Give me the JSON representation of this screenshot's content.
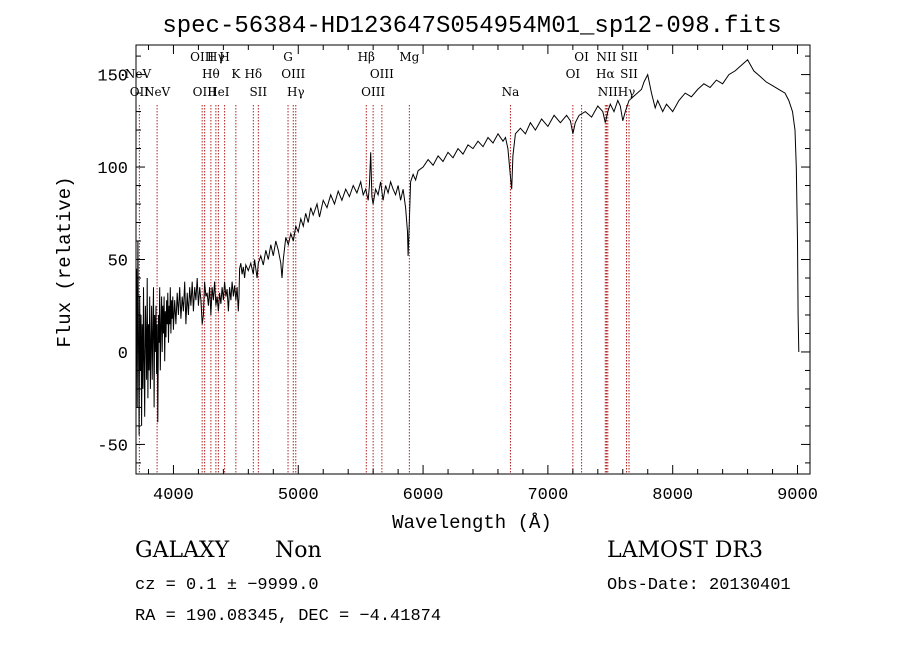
{
  "chart_data": {
    "type": "line",
    "title": "spec-56384-HD123647S054954M01_sp12-098.fits",
    "xlabel": "Wavelength (Å)",
    "ylabel": "Flux (relative)",
    "xlim": [
      3700,
      9100
    ],
    "ylim": [
      -66,
      166
    ],
    "xticks": [
      4000,
      5000,
      6000,
      7000,
      8000,
      9000
    ],
    "yticks": [
      -50,
      0,
      50,
      100,
      150
    ],
    "grid": false,
    "series": [
      {
        "points": [
          [
            3700,
            2
          ],
          [
            3705,
            45
          ],
          [
            3710,
            -30
          ],
          [
            3715,
            60
          ],
          [
            3720,
            5
          ],
          [
            3725,
            -45
          ],
          [
            3730,
            30
          ],
          [
            3735,
            -10
          ],
          [
            3740,
            20
          ],
          [
            3745,
            -40
          ],
          [
            3750,
            15
          ],
          [
            3755,
            -20
          ],
          [
            3760,
            35
          ],
          [
            3765,
            -5
          ],
          [
            3770,
            -35
          ],
          [
            3775,
            25
          ],
          [
            3780,
            10
          ],
          [
            3785,
            -15
          ],
          [
            3790,
            40
          ],
          [
            3795,
            -25
          ],
          [
            3800,
            15
          ],
          [
            3805,
            -10
          ],
          [
            3810,
            30
          ],
          [
            3815,
            -20
          ],
          [
            3820,
            5
          ],
          [
            3825,
            25
          ],
          [
            3830,
            -15
          ],
          [
            3835,
            10
          ],
          [
            3840,
            35
          ],
          [
            3845,
            -30
          ],
          [
            3850,
            20
          ],
          [
            3855,
            0
          ],
          [
            3860,
            25
          ],
          [
            3865,
            -12
          ],
          [
            3870,
            15
          ],
          [
            3875,
            -38
          ],
          [
            3880,
            20
          ],
          [
            3885,
            5
          ],
          [
            3890,
            35
          ],
          [
            3895,
            -10
          ],
          [
            3900,
            15
          ],
          [
            3905,
            30
          ],
          [
            3910,
            0
          ],
          [
            3915,
            25
          ],
          [
            3920,
            10
          ],
          [
            3925,
            30
          ],
          [
            3930,
            -5
          ],
          [
            3935,
            22
          ],
          [
            3940,
            8
          ],
          [
            3945,
            28
          ],
          [
            3950,
            15
          ],
          [
            3955,
            32
          ],
          [
            3960,
            5
          ],
          [
            3965,
            25
          ],
          [
            3970,
            15
          ],
          [
            3975,
            35
          ],
          [
            3980,
            10
          ],
          [
            3985,
            28
          ],
          [
            3990,
            18
          ],
          [
            3995,
            30
          ],
          [
            4000,
            12
          ],
          [
            4010,
            28
          ],
          [
            4020,
            15
          ],
          [
            4030,
            32
          ],
          [
            4040,
            20
          ],
          [
            4050,
            35
          ],
          [
            4060,
            18
          ],
          [
            4070,
            30
          ],
          [
            4080,
            22
          ],
          [
            4090,
            38
          ],
          [
            4100,
            15
          ],
          [
            4110,
            32
          ],
          [
            4120,
            20
          ],
          [
            4130,
            35
          ],
          [
            4140,
            25
          ],
          [
            4150,
            38
          ],
          [
            4160,
            22
          ],
          [
            4170,
            35
          ],
          [
            4180,
            28
          ],
          [
            4190,
            40
          ],
          [
            4200,
            25
          ],
          [
            4210,
            35
          ],
          [
            4220,
            28
          ],
          [
            4230,
            15
          ],
          [
            4240,
            20
          ],
          [
            4250,
            38
          ],
          [
            4260,
            30
          ],
          [
            4270,
            32
          ],
          [
            4280,
            25
          ],
          [
            4290,
            35
          ],
          [
            4300,
            20
          ],
          [
            4310,
            35
          ],
          [
            4320,
            28
          ],
          [
            4330,
            38
          ],
          [
            4340,
            25
          ],
          [
            4350,
            30
          ],
          [
            4360,
            22
          ],
          [
            4370,
            32
          ],
          [
            4380,
            26
          ],
          [
            4390,
            35
          ],
          [
            4400,
            28
          ],
          [
            4410,
            38
          ],
          [
            4420,
            30
          ],
          [
            4430,
            34
          ],
          [
            4440,
            22
          ],
          [
            4450,
            35
          ],
          [
            4460,
            28
          ],
          [
            4470,
            38
          ],
          [
            4480,
            30
          ],
          [
            4490,
            36
          ],
          [
            4500,
            28
          ],
          [
            4510,
            35
          ],
          [
            4520,
            22
          ],
          [
            4525,
            30
          ],
          [
            4530,
            45
          ],
          [
            4540,
            48
          ],
          [
            4550,
            42
          ],
          [
            4560,
            46
          ],
          [
            4570,
            40
          ],
          [
            4580,
            47
          ],
          [
            4600,
            44
          ],
          [
            4620,
            48
          ],
          [
            4640,
            42
          ],
          [
            4650,
            50
          ],
          [
            4660,
            45
          ],
          [
            4670,
            40
          ],
          [
            4680,
            48
          ],
          [
            4700,
            52
          ],
          [
            4720,
            47
          ],
          [
            4740,
            55
          ],
          [
            4760,
            50
          ],
          [
            4780,
            58
          ],
          [
            4800,
            52
          ],
          [
            4820,
            60
          ],
          [
            4840,
            55
          ],
          [
            4860,
            48
          ],
          [
            4870,
            40
          ],
          [
            4880,
            50
          ],
          [
            4900,
            62
          ],
          [
            4920,
            58
          ],
          [
            4940,
            64
          ],
          [
            4960,
            60
          ],
          [
            4980,
            68
          ],
          [
            5000,
            65
          ],
          [
            5020,
            72
          ],
          [
            5040,
            68
          ],
          [
            5060,
            75
          ],
          [
            5080,
            70
          ],
          [
            5100,
            78
          ],
          [
            5120,
            74
          ],
          [
            5150,
            80
          ],
          [
            5170,
            73
          ],
          [
            5200,
            82
          ],
          [
            5230,
            78
          ],
          [
            5260,
            85
          ],
          [
            5290,
            80
          ],
          [
            5320,
            87
          ],
          [
            5350,
            82
          ],
          [
            5380,
            88
          ],
          [
            5410,
            84
          ],
          [
            5440,
            90
          ],
          [
            5470,
            86
          ],
          [
            5500,
            92
          ],
          [
            5520,
            85
          ],
          [
            5540,
            88
          ],
          [
            5560,
            82
          ],
          [
            5570,
            90
          ],
          [
            5580,
            108
          ],
          [
            5590,
            84
          ],
          [
            5600,
            80
          ],
          [
            5620,
            88
          ],
          [
            5640,
            85
          ],
          [
            5660,
            92
          ],
          [
            5680,
            82
          ],
          [
            5700,
            90
          ],
          [
            5720,
            86
          ],
          [
            5740,
            92
          ],
          [
            5760,
            88
          ],
          [
            5780,
            85
          ],
          [
            5800,
            90
          ],
          [
            5820,
            82
          ],
          [
            5840,
            88
          ],
          [
            5860,
            78
          ],
          [
            5875,
            65
          ],
          [
            5880,
            52
          ],
          [
            5890,
            70
          ],
          [
            5900,
            92
          ],
          [
            5920,
            96
          ],
          [
            5940,
            93
          ],
          [
            5960,
            98
          ],
          [
            6000,
            100
          ],
          [
            6040,
            104
          ],
          [
            6080,
            101
          ],
          [
            6120,
            106
          ],
          [
            6160,
            103
          ],
          [
            6200,
            108
          ],
          [
            6240,
            105
          ],
          [
            6280,
            110
          ],
          [
            6320,
            107
          ],
          [
            6360,
            112
          ],
          [
            6400,
            110
          ],
          [
            6440,
            114
          ],
          [
            6480,
            111
          ],
          [
            6520,
            116
          ],
          [
            6560,
            113
          ],
          [
            6600,
            118
          ],
          [
            6640,
            114
          ],
          [
            6660,
            116
          ],
          [
            6680,
            110
          ],
          [
            6700,
            95
          ],
          [
            6710,
            88
          ],
          [
            6720,
            106
          ],
          [
            6740,
            118
          ],
          [
            6780,
            121
          ],
          [
            6820,
            118
          ],
          [
            6860,
            124
          ],
          [
            6900,
            120
          ],
          [
            6950,
            126
          ],
          [
            7000,
            122
          ],
          [
            7050,
            128
          ],
          [
            7100,
            124
          ],
          [
            7150,
            128
          ],
          [
            7180,
            125
          ],
          [
            7200,
            118
          ],
          [
            7220,
            124
          ],
          [
            7250,
            128
          ],
          [
            7300,
            130
          ],
          [
            7350,
            127
          ],
          [
            7400,
            133
          ],
          [
            7440,
            130
          ],
          [
            7460,
            124
          ],
          [
            7480,
            130
          ],
          [
            7500,
            134
          ],
          [
            7530,
            130
          ],
          [
            7560,
            136
          ],
          [
            7580,
            133
          ],
          [
            7600,
            125
          ],
          [
            7620,
            130
          ],
          [
            7650,
            136
          ],
          [
            7700,
            139
          ],
          [
            7750,
            142
          ],
          [
            7770,
            146
          ],
          [
            7800,
            150
          ],
          [
            7830,
            140
          ],
          [
            7860,
            132
          ],
          [
            7880,
            136
          ],
          [
            7920,
            130
          ],
          [
            7950,
            134
          ],
          [
            8000,
            130
          ],
          [
            8050,
            136
          ],
          [
            8100,
            140
          ],
          [
            8150,
            138
          ],
          [
            8200,
            142
          ],
          [
            8250,
            145
          ],
          [
            8300,
            143
          ],
          [
            8350,
            147
          ],
          [
            8400,
            145
          ],
          [
            8450,
            150
          ],
          [
            8500,
            152
          ],
          [
            8550,
            155
          ],
          [
            8600,
            158
          ],
          [
            8650,
            152
          ],
          [
            8700,
            149
          ],
          [
            8750,
            146
          ],
          [
            8800,
            144
          ],
          [
            8850,
            142
          ],
          [
            8900,
            140
          ],
          [
            8930,
            136
          ],
          [
            8960,
            130
          ],
          [
            8980,
            120
          ],
          [
            8990,
            100
          ],
          [
            9000,
            60
          ],
          [
            9005,
            20
          ],
          [
            9010,
            0
          ]
        ]
      }
    ],
    "lines": [
      {
        "name": "NeV",
        "x": 3869,
        "row": 2
      },
      {
        "name": "NeV",
        "x": 3426,
        "row": 1
      },
      {
        "name": "OII",
        "x": 3727,
        "row": 3
      },
      {
        "name": "OIII",
        "x": 4230,
        "row": 0
      },
      {
        "name": "OIII",
        "x": 4250,
        "row": 2
      },
      {
        "name": "Hγ",
        "x": 4340,
        "row": 0
      },
      {
        "name": "Hθ",
        "x": 4300,
        "row": 1
      },
      {
        "name": "H",
        "x": 4410,
        "row": 0
      },
      {
        "name": "HeI",
        "x": 4360,
        "row": 2
      },
      {
        "name": "K",
        "x": 4500,
        "row": 1
      },
      {
        "name": "Hδ",
        "x": 4640,
        "row": 1
      },
      {
        "name": "SII",
        "x": 4680,
        "row": 2
      },
      {
        "name": "G",
        "x": 4918,
        "row": 0
      },
      {
        "name": "OIII",
        "x": 4960,
        "row": 1
      },
      {
        "name": "Hγ",
        "x": 4980,
        "row": 2
      },
      {
        "name": "Hβ",
        "x": 5545,
        "row": 0
      },
      {
        "name": "OIII",
        "x": 5670,
        "row": 1
      },
      {
        "name": "OIII",
        "x": 5600,
        "row": 2
      },
      {
        "name": "Mg",
        "x": 5890,
        "row": 0
      },
      {
        "name": "Na",
        "x": 6700,
        "row": 2
      },
      {
        "name": "OI",
        "x": 7270,
        "row": 0
      },
      {
        "name": "OI",
        "x": 7200,
        "row": 1
      },
      {
        "name": "NII",
        "x": 7470,
        "row": 0
      },
      {
        "name": "Hα",
        "x": 7460,
        "row": 1
      },
      {
        "name": "NII",
        "x": 7480,
        "row": 2
      },
      {
        "name": "SII",
        "x": 7650,
        "row": 0
      },
      {
        "name": "SII",
        "x": 7650,
        "row": 1
      },
      {
        "name": "Hγ",
        "x": 7630,
        "row": 2
      }
    ]
  },
  "info": {
    "class": "GALAXY",
    "subclass": "Non",
    "survey": "LAMOST DR3",
    "cz": "cz = 0.1 ± −9999.0",
    "obs_date": "Obs-Date: 20130401",
    "coords": "RA = 190.08345, DEC =  −4.41874"
  },
  "colors": {
    "axis": "#000000",
    "spectrum": "#000000",
    "line_marker": "#b22222"
  }
}
